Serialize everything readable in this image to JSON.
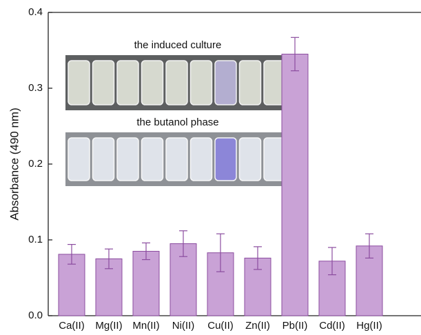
{
  "chart_data": {
    "type": "bar",
    "y_label": "Absorbance (490 nm)",
    "annotations": [
      "the induced culture",
      "the butanol phase"
    ],
    "categories": [
      "Ca(II)",
      "Mg(II)",
      "Mn(II)",
      "Ni(II)",
      "Cu(II)",
      "Zn(II)",
      "Pb(II)",
      "Cd(II)",
      "Hg(II)"
    ],
    "values": [
      0.081,
      0.075,
      0.085,
      0.095,
      0.083,
      0.076,
      0.345,
      0.072,
      0.092
    ],
    "errors": [
      0.013,
      0.013,
      0.011,
      0.017,
      0.025,
      0.015,
      0.022,
      0.018,
      0.016
    ],
    "color": "#c9a2d6",
    "edge_color": "#8b4c9f",
    "ylim": [
      0,
      0.4
    ],
    "yticks": [
      {
        "value": 0,
        "label": "0.0"
      },
      0.1,
      0.2,
      0.3,
      0.4
    ]
  }
}
